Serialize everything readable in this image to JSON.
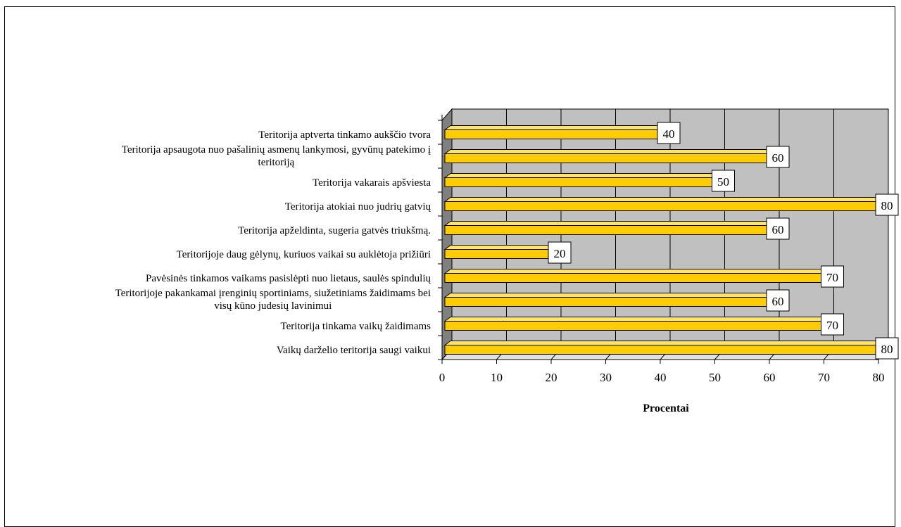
{
  "chart_data": {
    "type": "bar",
    "orientation": "horizontal",
    "categories": [
      "Vaikų darželio teritorija saugi vaikui",
      "Teritorija tinkama vaikų žaidimams",
      "Teritorijoje pakankamai įrenginių sportiniams, siužetiniams žaidimams bei visų kūno judesių lavinimui",
      "Pavėsinės tinkamos  vaikams pasislėpti nuo lietaus, saulės spindulių",
      "Teritorijoje daug gėlynų, kuriuos vaikai su auklėtoja  prižiūri",
      "Teritorija apželdinta, sugeria gatvės triukšmą.",
      "Teritorija atokiai nuo judrių gatvių",
      "Teritorija vakarais apšviesta",
      "Teritorija apsaugota nuo pašalinių asmenų lankymosi, gyvūnų patekimo į teritoriją",
      "Teritorija aptverta tinkamo aukščio tvora"
    ],
    "category_lines": [
      [
        "Vaikų darželio teritorija saugi vaikui"
      ],
      [
        "Teritorija tinkama vaikų žaidimams"
      ],
      [
        "Teritorijoje pakankamai įrenginių sportiniams, siužetiniams žaidimams bei",
        "visų kūno judesių lavinimui"
      ],
      [
        "Pavėsinės tinkamos  vaikams pasislėpti nuo lietaus, saulės spindulių"
      ],
      [
        "Teritorijoje daug gėlynų, kuriuos vaikai su auklėtoja  prižiūri"
      ],
      [
        "Teritorija apželdinta, sugeria gatvės triukšmą."
      ],
      [
        "Teritorija atokiai nuo judrių gatvių"
      ],
      [
        "Teritorija vakarais apšviesta"
      ],
      [
        "Teritorija apsaugota nuo pašalinių asmenų lankymosi, gyvūnų patekimo į",
        "teritoriją"
      ],
      [
        "Teritorija aptverta tinkamo aukščio tvora"
      ]
    ],
    "values": [
      80,
      70,
      60,
      70,
      20,
      60,
      80,
      50,
      60,
      40
    ],
    "xlabel": "Procentai",
    "xlim": [
      0,
      80
    ],
    "xticks": [
      0,
      10,
      20,
      30,
      40,
      50,
      60,
      70,
      80
    ],
    "grid": true,
    "data_labels": true,
    "legend": "none",
    "colors": {
      "bar_front": "#ffcc00",
      "bar_top": "#ffe566",
      "bar_end": "#cc9900",
      "wall": "#c0c0c0",
      "side_wall": "#808080",
      "floor": "#e0e0e0"
    }
  }
}
